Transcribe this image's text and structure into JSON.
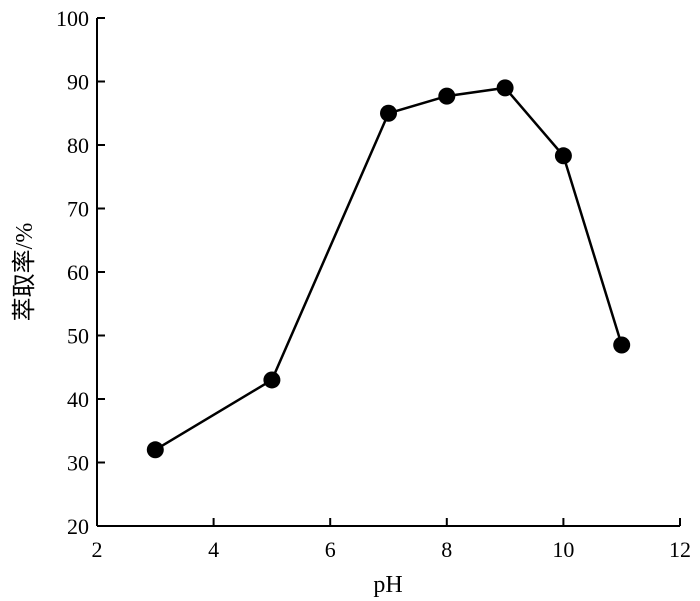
{
  "chart_data": {
    "type": "line",
    "xlabel": "pH",
    "ylabel": "萃取率/%",
    "xlim": [
      2,
      12
    ],
    "ylim": [
      20,
      100
    ],
    "x_ticks": [
      "2",
      "4",
      "6",
      "8",
      "10",
      "12"
    ],
    "y_ticks": [
      "20",
      "30",
      "40",
      "50",
      "60",
      "70",
      "80",
      "90",
      "100"
    ],
    "grid": false,
    "series": [
      {
        "x": [
          3,
          5,
          7,
          8,
          9,
          10,
          11
        ],
        "y": [
          32,
          43,
          85,
          87.7,
          89,
          78.3,
          48.5
        ]
      }
    ]
  }
}
